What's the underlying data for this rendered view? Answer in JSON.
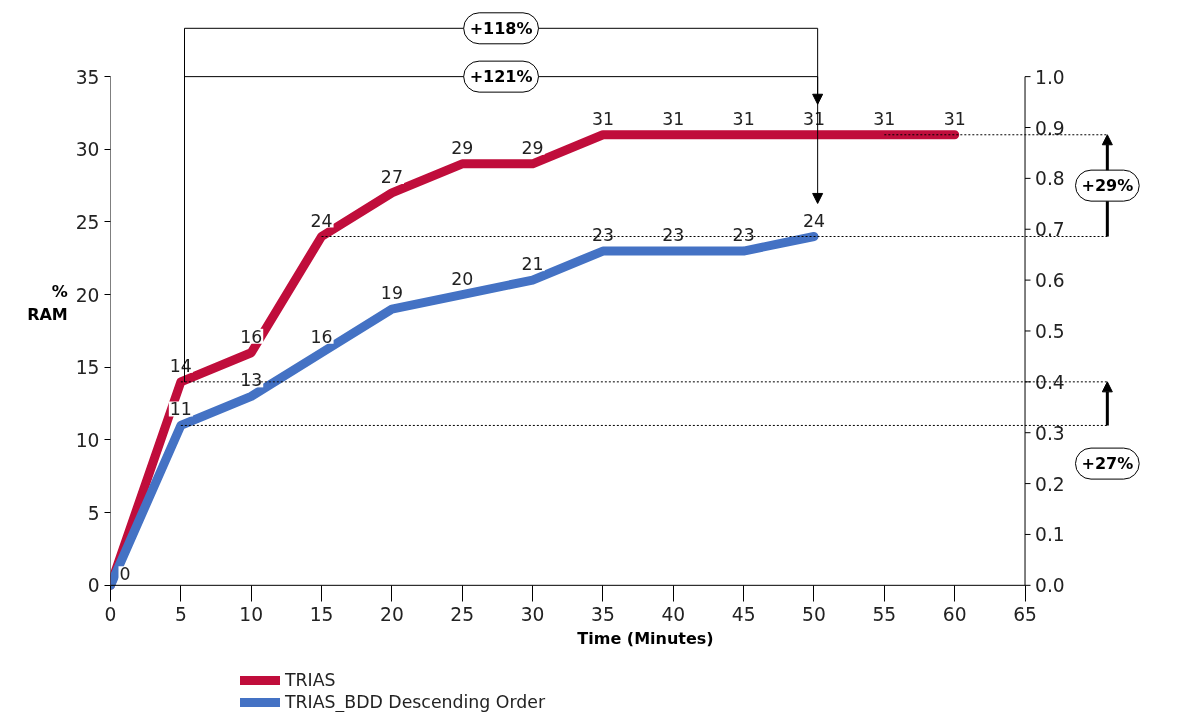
{
  "chart_data": {
    "type": "line",
    "xlabel": "Time (Minutes)",
    "ylabel": "% RAM",
    "x": [
      0,
      5,
      10,
      15,
      20,
      25,
      30,
      35,
      40,
      45,
      50,
      55,
      60
    ],
    "series": [
      {
        "name": "TRIAS",
        "color": "#c00d3b",
        "values": [
          0,
          14,
          16,
          24,
          27,
          29,
          29,
          31,
          31,
          31,
          31,
          31,
          31
        ],
        "value_labels": [
          null,
          "14",
          "16",
          "24",
          "27",
          "29",
          "29",
          "31",
          "31",
          "31",
          "31",
          "31",
          "31"
        ]
      },
      {
        "name": "TRIAS_BDD Descending Order",
        "color": "#4472c4",
        "values": [
          0,
          11,
          13,
          16,
          19,
          20,
          21,
          23,
          23,
          23,
          24,
          null,
          null
        ],
        "value_labels": [
          "0",
          "11",
          "13",
          "16",
          "19",
          "20",
          "21",
          "23",
          "23",
          "23",
          "24",
          null,
          null
        ]
      }
    ],
    "xlim": [
      0,
      65
    ],
    "xticks": [
      0,
      5,
      10,
      15,
      20,
      25,
      30,
      35,
      40,
      45,
      50,
      55,
      60,
      65
    ],
    "ylim": [
      0,
      35
    ],
    "yticks": [
      0,
      5,
      10,
      15,
      20,
      25,
      30,
      35
    ],
    "y2lim": [
      0,
      1
    ],
    "y2ticks": [
      {
        "value": 0,
        "label": "0.0"
      },
      0.1,
      0.2,
      0.3,
      0.4,
      0.5,
      0.6,
      0.7,
      0.8,
      0.9,
      {
        "value": 1,
        "label": "1.0"
      }
    ],
    "ref_lines": [
      {
        "axis": "y",
        "value": 14,
        "line_style": "dotted"
      },
      {
        "axis": "y",
        "value": 11,
        "line_style": "dotted"
      },
      {
        "axis": "y",
        "value": 31,
        "line_style": "dotted"
      },
      {
        "axis": "y",
        "value": 24,
        "line_style": "dotted"
      }
    ],
    "annotations": [
      "+118%",
      "+121%",
      "+29%",
      "+27%"
    ],
    "legend": "bottom",
    "grid": false,
    "marker": "none",
    "line_style": "solid"
  }
}
